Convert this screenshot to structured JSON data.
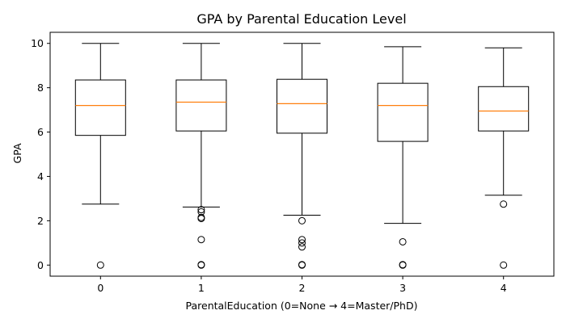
{
  "chart_data": {
    "type": "box",
    "title": "GPA by Parental Education Level",
    "xlabel": "ParentalEducation (0=None → 4=Master/PhD)",
    "ylabel": "GPA",
    "ylim": [
      -0.5,
      10.5
    ],
    "yticks": [
      0,
      2,
      4,
      6,
      8,
      10
    ],
    "categories": [
      "0",
      "1",
      "2",
      "3",
      "4"
    ],
    "grid": false,
    "boxes": [
      {
        "category": "0",
        "whisker_low": 2.75,
        "q1": 5.85,
        "median": 7.2,
        "q3": 8.35,
        "whisker_high": 10.0,
        "outliers": [
          0.0
        ]
      },
      {
        "category": "1",
        "whisker_low": 2.62,
        "q1": 6.05,
        "median": 7.35,
        "q3": 8.35,
        "whisker_high": 10.0,
        "outliers": [
          2.5,
          2.4,
          2.15,
          2.1,
          1.15,
          0.02,
          0.0
        ]
      },
      {
        "category": "2",
        "whisker_low": 2.25,
        "q1": 5.95,
        "median": 7.28,
        "q3": 8.38,
        "whisker_high": 10.0,
        "outliers": [
          2.0,
          1.15,
          1.0,
          0.82,
          0.02,
          0.0
        ]
      },
      {
        "category": "3",
        "whisker_low": 1.88,
        "q1": 5.58,
        "median": 7.2,
        "q3": 8.2,
        "whisker_high": 9.85,
        "outliers": [
          1.05,
          0.02,
          0.0
        ]
      },
      {
        "category": "4",
        "whisker_low": 3.15,
        "q1": 6.05,
        "median": 6.95,
        "q3": 8.05,
        "whisker_high": 9.8,
        "outliers": [
          2.75,
          0.0
        ]
      }
    ],
    "colors": {
      "box": "#000000",
      "median": "#ff7f0e",
      "outlier": "#000000"
    }
  }
}
